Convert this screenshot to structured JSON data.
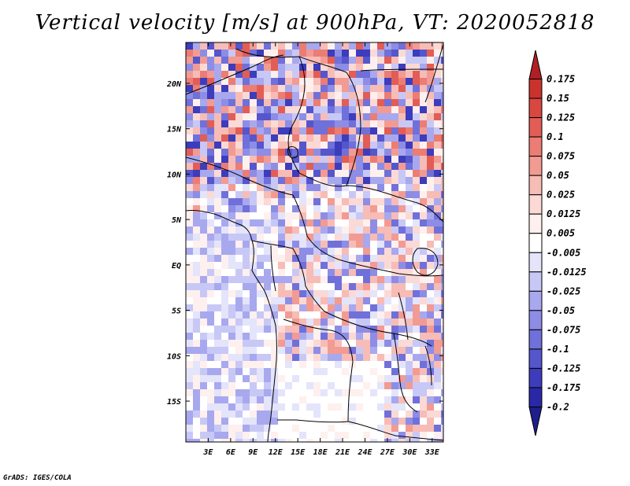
{
  "title": "Vertical velocity [m/s] at 900hPa, VT: 2020052818",
  "footer": "GrADS: IGES/COLA",
  "map": {
    "lat_labels": [
      "20N",
      "15N",
      "10N",
      "5N",
      "EQ",
      "5S",
      "10S",
      "15S"
    ],
    "lon_labels": [
      "3E",
      "6E",
      "9E",
      "12E",
      "15E",
      "18E",
      "21E",
      "24E",
      "27E",
      "30E",
      "33E"
    ],
    "lon_range": [
      0,
      34.5
    ],
    "lat_range": [
      -19.5,
      24.5
    ]
  },
  "colorbar": {
    "labels": [
      "0.175",
      "0.15",
      "0.125",
      "0.1",
      "0.075",
      "0.05",
      "0.025",
      "0.0125",
      "0.005",
      "-0.005",
      "-0.0125",
      "-0.025",
      "-0.05",
      "-0.075",
      "-0.1",
      "-0.125",
      "-0.175",
      "-0.2"
    ],
    "colors": [
      "#b01f24",
      "#c9322d",
      "#d94740",
      "#e25d55",
      "#eb7d74",
      "#f29b93",
      "#f7bcb6",
      "#fbd9d5",
      "#fef0ee",
      "#ffffff",
      "#e4e4fb",
      "#c8c8f6",
      "#a8a8ef",
      "#8d8de6",
      "#7070da",
      "#5555cc",
      "#3c3cbd",
      "#2929a8",
      "#1e1e8c"
    ]
  }
}
